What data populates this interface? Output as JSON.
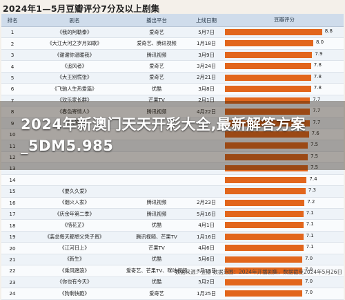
{
  "title": "2024年1—5月豆瓣评分7分及以上剧集",
  "headers": {
    "rank": "排名",
    "name": "剧名",
    "platform": "播出平台",
    "date": "上线日期",
    "score": "豆瓣评分"
  },
  "overlay_text": "2024年新澳门天天开彩大全,最新解答方案_5DM5.985",
  "footer": "数据来源：豆瓣  数据范围：2024年开播剧集，数据截至2024年5月26日",
  "colors": {
    "bar": "#e2661c",
    "header_bg": "#cfdceb",
    "overlay": "#2a190a"
  },
  "chart_data": {
    "type": "bar",
    "orientation": "horizontal",
    "xlim": [
      0,
      10
    ],
    "rows": [
      {
        "rank": "1",
        "name": "《我的阿勒泰》",
        "platform": "爱奇艺",
        "date": "5月7日",
        "score": 8.8
      },
      {
        "rank": "2",
        "name": "《大江大河之岁月如歌》",
        "platform": "爱奇艺、腾讯视频",
        "date": "1月18日",
        "score": 8.0
      },
      {
        "rank": "3",
        "name": "《谢谢你温暖我》",
        "platform": "腾讯视频",
        "date": "3月9日",
        "score": 7.9
      },
      {
        "rank": "4",
        "name": "《追风者》",
        "platform": "爱奇艺",
        "date": "3月24日",
        "score": 7.8
      },
      {
        "rank": "5",
        "name": "《大王别慌张》",
        "platform": "爱奇艺",
        "date": "2月21日",
        "score": 7.8
      },
      {
        "rank": "6",
        "name": "《飞驰人生热爱篇》",
        "platform": "优酷",
        "date": "3月8日",
        "score": 7.8
      },
      {
        "rank": "7",
        "name": "《欢乐家长群》",
        "platform": "芒果TV",
        "date": "2月1日",
        "score": 7.7
      },
      {
        "rank": "8",
        "name": "《春色寄情人》",
        "platform": "腾讯视频",
        "date": "4月22日",
        "score": 7.7
      },
      {
        "rank": "9",
        "name": "《执笔》",
        "platform": "",
        "date": "",
        "score": 7.7
      },
      {
        "rank": "10",
        "name": "",
        "platform": "",
        "date": "",
        "score": 7.6
      },
      {
        "rank": "11",
        "name": "",
        "platform": "",
        "date": "",
        "score": 7.5
      },
      {
        "rank": "12",
        "name": "",
        "platform": "",
        "date": "",
        "score": 7.5
      },
      {
        "rank": "13",
        "name": "",
        "platform": "",
        "date": "",
        "score": 7.5
      },
      {
        "rank": "14",
        "name": "",
        "platform": "",
        "date": "",
        "score": 7.4
      },
      {
        "rank": "15",
        "name": "《要久久爱》",
        "platform": "",
        "date": "",
        "score": 7.3
      },
      {
        "rank": "16",
        "name": "《烟火人家》",
        "platform": "腾讯视频",
        "date": "2月23日",
        "score": 7.2
      },
      {
        "rank": "17",
        "name": "《庆余年第二季》",
        "platform": "腾讯视频",
        "date": "5月16日",
        "score": 7.1
      },
      {
        "rank": "18",
        "name": "《惜花芷》",
        "platform": "优酷",
        "date": "4月1日",
        "score": 7.1
      },
      {
        "rank": "19",
        "name": "《装总每天都想父凭子贵》",
        "platform": "腾讯视频、芒果TV",
        "date": "1月16日",
        "score": 7.1
      },
      {
        "rank": "20",
        "name": "《江河日上》",
        "platform": "芒果TV",
        "date": "4月6日",
        "score": 7.1
      },
      {
        "rank": "21",
        "name": "《新生》",
        "platform": "优酷",
        "date": "5月6日",
        "score": 7.0
      },
      {
        "rank": "22",
        "name": "《乘风踏浪》",
        "platform": "爱奇艺、芒果TV、咪咕视频",
        "date": "3月13日",
        "score": 7.0
      },
      {
        "rank": "23",
        "name": "《你也有今天》",
        "platform": "优酷",
        "date": "5月2日",
        "score": 7.0
      },
      {
        "rank": "24",
        "name": "《狗剩快跑》",
        "platform": "爱奇艺",
        "date": "1月25日",
        "score": 7.0
      }
    ]
  }
}
